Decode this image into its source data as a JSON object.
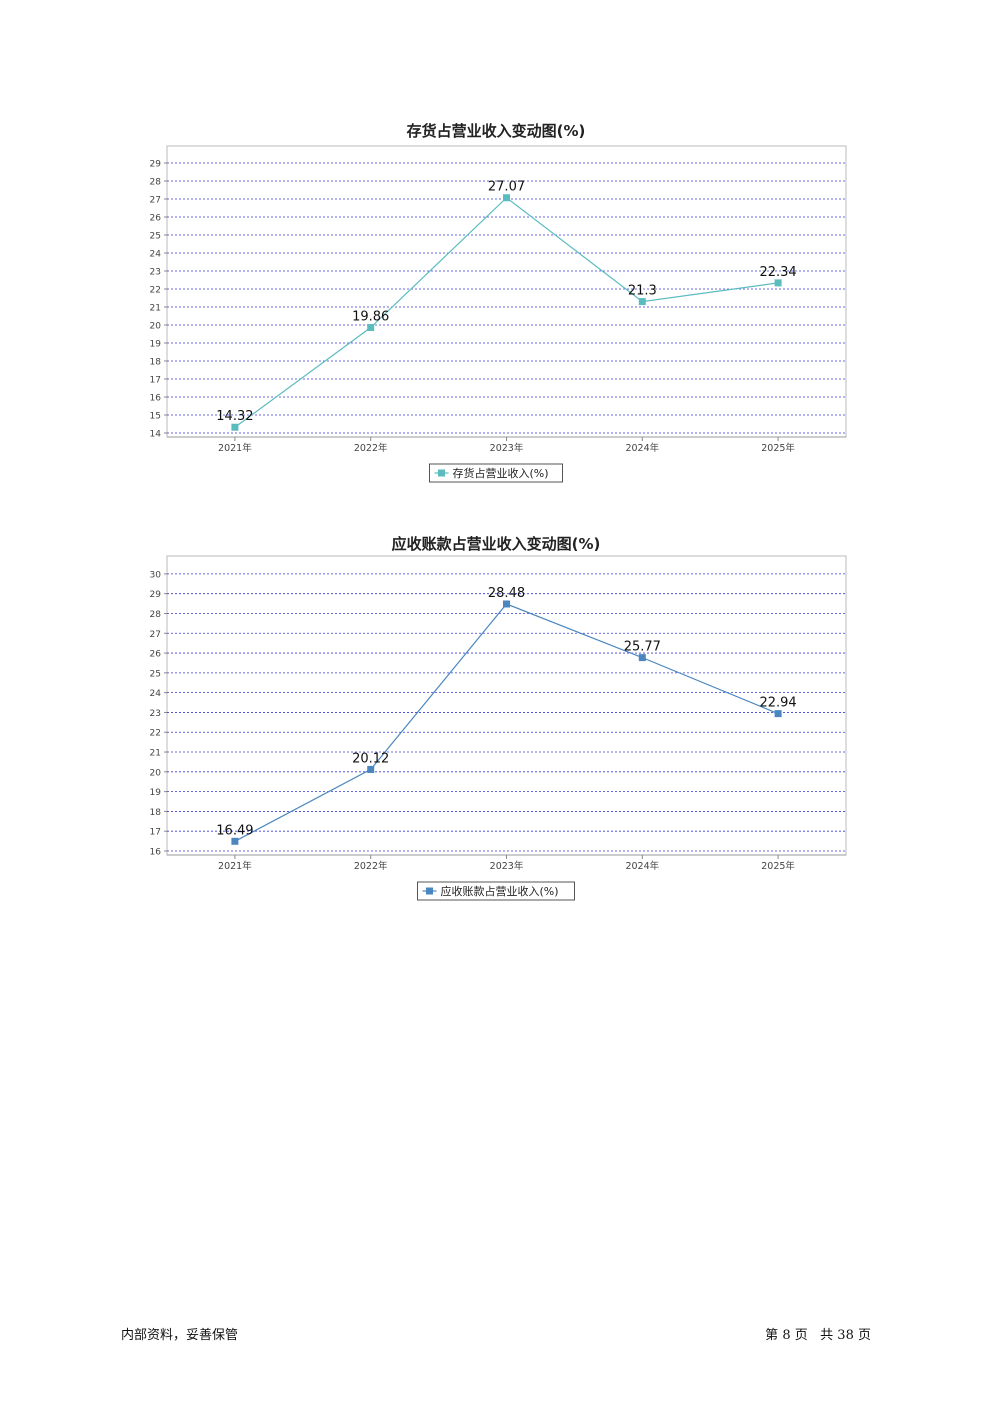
{
  "chart_data": [
    {
      "type": "line",
      "title": "存货占营业收入变动图(%)",
      "categories": [
        "2021年",
        "2022年",
        "2023年",
        "2024年",
        "2025年"
      ],
      "series": [
        {
          "name": "存货占营业收入(%)",
          "values": [
            14.32,
            19.86,
            27.07,
            21.3,
            22.34
          ],
          "labels": [
            "14.32",
            "19.86",
            "27.07",
            "21.3",
            "22.34"
          ]
        }
      ],
      "ylim": [
        14,
        29.5
      ],
      "yticks": [
        14,
        15,
        16,
        17,
        18,
        19,
        20,
        21,
        22,
        23,
        24,
        25,
        26,
        27,
        28,
        29
      ],
      "ytick_labels": [
        "14",
        "15",
        "16",
        "17",
        "18",
        "19",
        "20",
        "21",
        "22",
        "23",
        "24",
        "25",
        "26",
        "27",
        "28",
        "29"
      ],
      "grid": true,
      "legend": "bottom-center",
      "color": "#5bbcbf"
    },
    {
      "type": "line",
      "title": "应收账款占营业收入变动图(%)",
      "categories": [
        "2021年",
        "2022年",
        "2023年",
        "2024年",
        "2025年"
      ],
      "series": [
        {
          "name": "应收账款占营业收入(%)",
          "values": [
            16.49,
            20.12,
            28.48,
            25.77,
            22.94
          ],
          "labels": [
            "16.49",
            "20.12",
            "28.48",
            "25.77",
            "22.94"
          ]
        }
      ],
      "ylim": [
        16,
        30.5
      ],
      "yticks": [
        16,
        17,
        18,
        19,
        20,
        21,
        22,
        23,
        24,
        25,
        26,
        27,
        28,
        29,
        30
      ],
      "ytick_labels": [
        "16",
        "17",
        "18",
        "19",
        "20",
        "21",
        "22",
        "23",
        "24",
        "25",
        "26",
        "27",
        "28",
        "29",
        "30"
      ],
      "grid": true,
      "legend": "bottom-center",
      "color": "#4a86c0"
    }
  ],
  "footer": {
    "left": "内部资料，妥善保管",
    "page_prefix": "第",
    "page_num": "8",
    "page_mid": "页   共",
    "page_total": "38",
    "page_suffix": "页"
  }
}
